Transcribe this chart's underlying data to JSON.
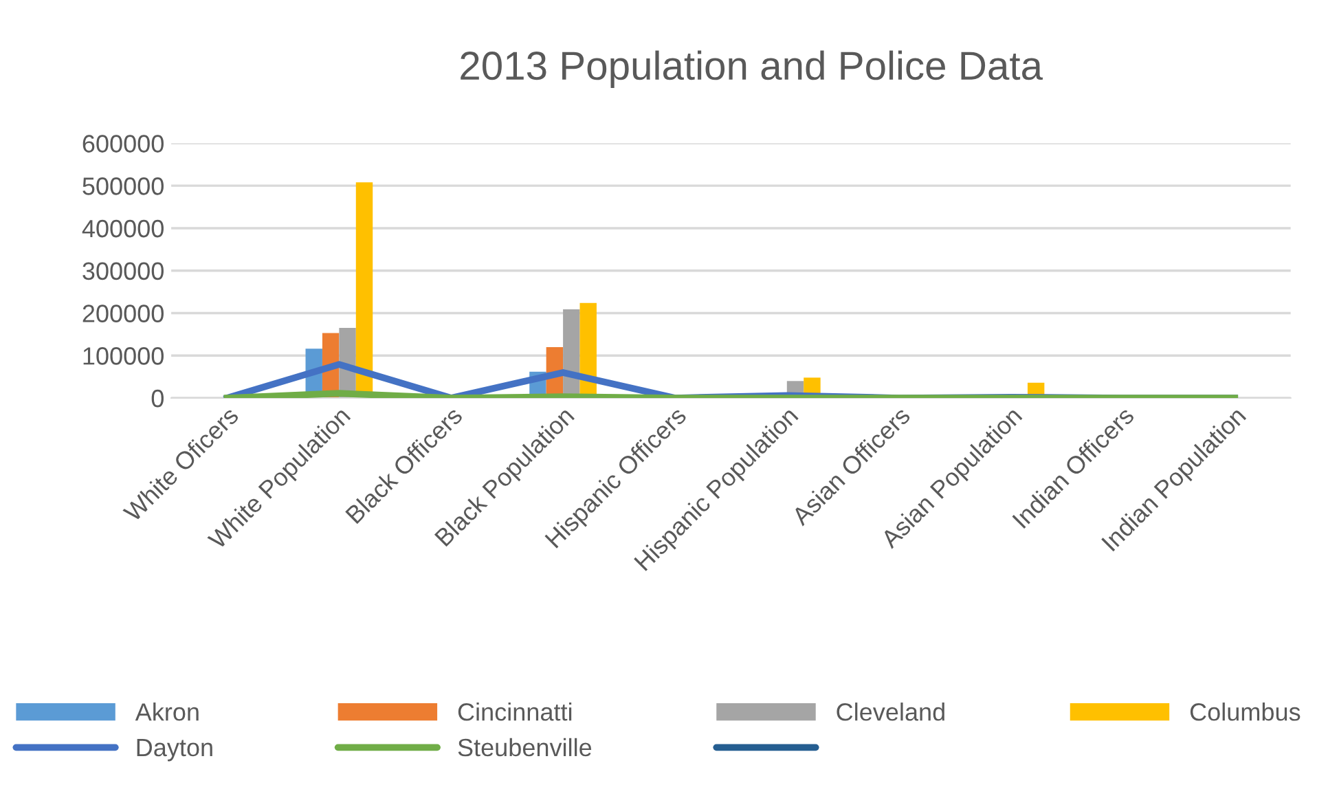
{
  "chart_data": {
    "type": "bar",
    "title": "2013 Population and Police Data",
    "categories": [
      "White Oficers",
      "White Population",
      "Black Officers",
      "Black Population",
      "Hispanic Officers",
      "Hispanic Population",
      "Asian Officers",
      "Asian Population",
      "Indian Officers",
      "Indian Population"
    ],
    "series": [
      {
        "name": "Akron",
        "color": "#5b9bd5",
        "values": [
          0,
          116000,
          0,
          62000,
          0,
          2000,
          0,
          2000,
          0,
          0
        ]
      },
      {
        "name": "Cincinnatti",
        "color": "#ed7d31",
        "values": [
          0,
          153000,
          0,
          120000,
          0,
          null,
          0,
          null,
          0,
          0
        ]
      },
      {
        "name": "Cleveland",
        "color": "#a5a5a5",
        "values": [
          0,
          165000,
          0,
          209000,
          0,
          40000,
          0,
          null,
          0,
          null
        ]
      },
      {
        "name": "Columbus",
        "color": "#ffc000",
        "values": [
          0,
          508000,
          0,
          224000,
          0,
          48000,
          0,
          36000,
          0,
          null
        ]
      },
      {
        "name": "Dayton",
        "type": "line",
        "color": "#4472c4",
        "values": [
          0,
          79000,
          0,
          60000,
          0,
          6000,
          0,
          2000,
          0,
          0
        ]
      },
      {
        "name": "Steubenville",
        "type": "line",
        "color": "#70ad47",
        "values": [
          0,
          11000,
          0,
          3000,
          0,
          0,
          0,
          0,
          0,
          0
        ]
      },
      {
        "type": "line",
        "color": "#255e91",
        "values": [
          null,
          null,
          null,
          null,
          null,
          null,
          null,
          null,
          null,
          null
        ]
      }
    ],
    "ylim": [
      0,
      600000
    ],
    "yticks": [
      0,
      100000,
      200000,
      300000,
      400000,
      500000,
      600000
    ],
    "grid": "y",
    "legend": "bottom"
  }
}
